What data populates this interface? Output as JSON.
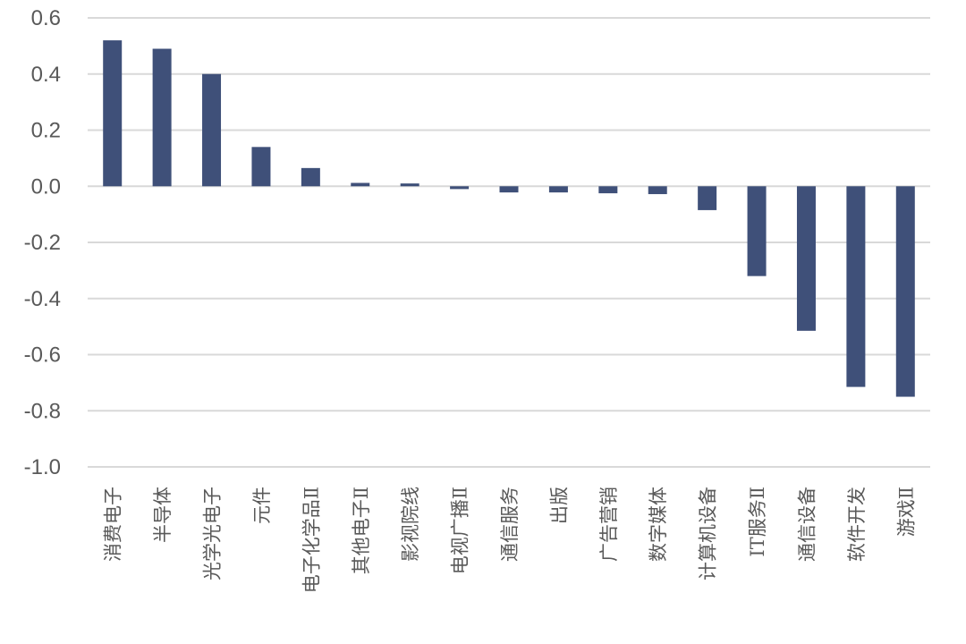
{
  "chart_data": {
    "type": "bar",
    "title": "",
    "xlabel": "",
    "ylabel": "",
    "ylim": [
      -1.0,
      0.6
    ],
    "yticks": [
      0.6,
      0.4,
      0.2,
      0.0,
      -0.2,
      -0.4,
      -0.6,
      -0.8,
      -1.0
    ],
    "ytick_labels": [
      "0.6",
      "0.4",
      "0.2",
      "0.0",
      "-0.2",
      "-0.4",
      "-0.6",
      "-0.8",
      "-1.0"
    ],
    "grid": true,
    "legend": "none",
    "bar_color": "#3f5079",
    "categories": [
      "消费电子",
      "半导体",
      "光学光电子",
      "元件",
      "电子化学品Ⅱ",
      "其他电子Ⅱ",
      "影视院线",
      "电视广播Ⅱ",
      "通信服务",
      "出版",
      "广告营销",
      "数字媒体",
      "计算机设备",
      "IT服务Ⅱ",
      "通信设备",
      "软件开发",
      "游戏Ⅱ"
    ],
    "values": [
      0.52,
      0.49,
      0.4,
      0.14,
      0.065,
      0.012,
      0.01,
      -0.01,
      -0.022,
      -0.022,
      -0.025,
      -0.028,
      -0.085,
      -0.32,
      -0.515,
      -0.715,
      -0.75
    ]
  }
}
